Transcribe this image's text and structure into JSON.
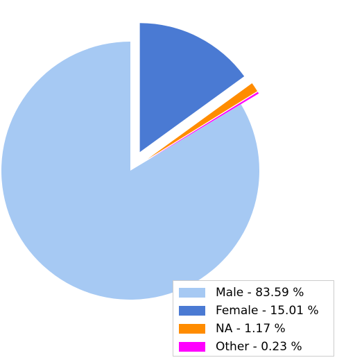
{
  "chart_data": {
    "type": "pie",
    "slices": [
      {
        "label": "Male",
        "value": 83.59,
        "color": "#a6c9f3",
        "exploded": false,
        "legend": "Male - 83.59 %"
      },
      {
        "label": "Female",
        "value": 15.01,
        "color": "#4a7ad3",
        "exploded": true,
        "legend": "Female - 15.01 %"
      },
      {
        "label": "NA",
        "value": 1.17,
        "color": "#ff8c00",
        "exploded": true,
        "legend": "NA - 1.17 %"
      },
      {
        "label": "Other",
        "value": 0.23,
        "color": "#ff00ff",
        "exploded": true,
        "legend": "Other - 0.23 %"
      }
    ],
    "start_angle": "top",
    "direction": "clockwise",
    "legend_position": "bottom-right"
  }
}
